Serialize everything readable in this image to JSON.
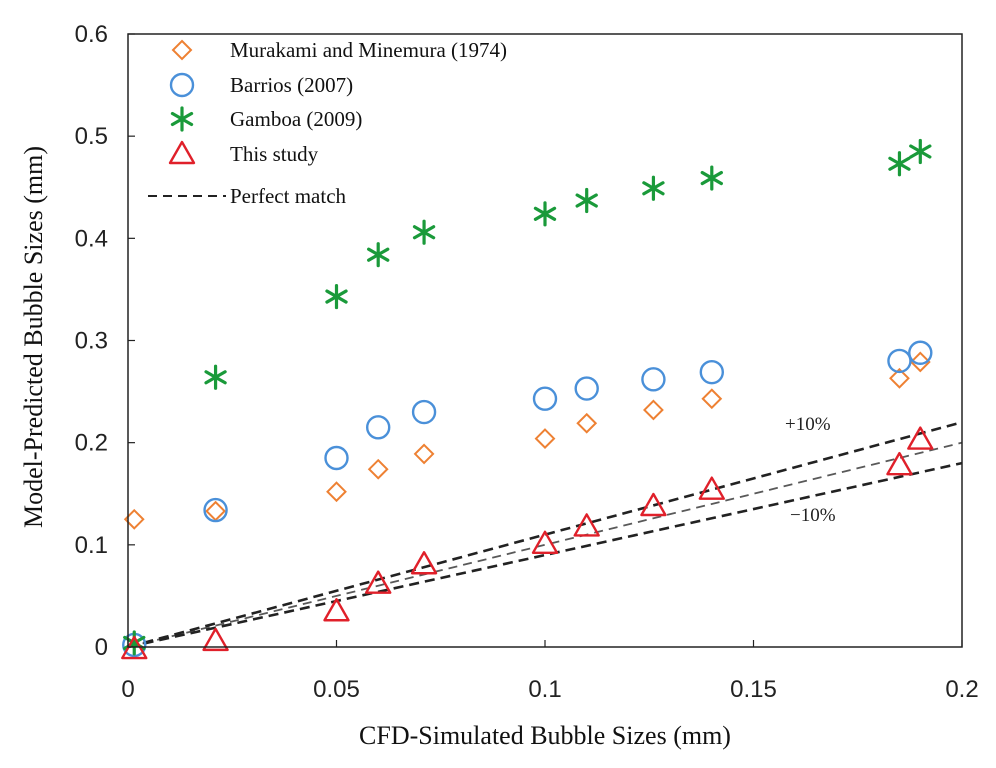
{
  "chart_data": {
    "type": "scatter",
    "xlabel": "CFD-Simulated Bubble Sizes (mm)",
    "ylabel": "Model-Predicted Bubble Sizes (mm)",
    "xlim": [
      0,
      0.2
    ],
    "ylim": [
      0,
      0.6
    ],
    "x_ticks": [
      0,
      0.05,
      0.1,
      0.15,
      0.2
    ],
    "x_tick_labels": [
      "0",
      "0.05",
      "0.1",
      "0.15",
      "0.2"
    ],
    "y_ticks": [
      0,
      0.1,
      0.2,
      0.3,
      0.4,
      0.5,
      0.6
    ],
    "y_tick_labels": [
      "0",
      "0.1",
      "0.2",
      "0.3",
      "0.4",
      "0.5",
      "0.6"
    ],
    "grid": false,
    "legend_position": "top-left",
    "series": [
      {
        "name": "Murakami and Minemura (1974)",
        "marker": "diamond",
        "color": "#ee8133",
        "points": [
          [
            0.0015,
            0.125
          ],
          [
            0.021,
            0.133
          ],
          [
            0.05,
            0.152
          ],
          [
            0.06,
            0.174
          ],
          [
            0.071,
            0.189
          ],
          [
            0.1,
            0.204
          ],
          [
            0.11,
            0.219
          ],
          [
            0.126,
            0.232
          ],
          [
            0.14,
            0.243
          ],
          [
            0.185,
            0.263
          ],
          [
            0.19,
            0.279
          ]
        ]
      },
      {
        "name": "Barrios (2007)",
        "marker": "circle",
        "color": "#4a90d9",
        "points": [
          [
            0.0015,
            0.002
          ],
          [
            0.021,
            0.134
          ],
          [
            0.05,
            0.185
          ],
          [
            0.06,
            0.215
          ],
          [
            0.071,
            0.23
          ],
          [
            0.1,
            0.243
          ],
          [
            0.11,
            0.253
          ],
          [
            0.126,
            0.262
          ],
          [
            0.14,
            0.269
          ],
          [
            0.185,
            0.28
          ],
          [
            0.19,
            0.288
          ]
        ]
      },
      {
        "name": "Gamboa (2009)",
        "marker": "asterisk",
        "color": "#1a9a3a",
        "points": [
          [
            0.0015,
            0.004
          ],
          [
            0.021,
            0.264
          ],
          [
            0.05,
            0.343
          ],
          [
            0.06,
            0.384
          ],
          [
            0.071,
            0.406
          ],
          [
            0.1,
            0.424
          ],
          [
            0.11,
            0.437
          ],
          [
            0.126,
            0.449
          ],
          [
            0.14,
            0.459
          ],
          [
            0.185,
            0.473
          ],
          [
            0.19,
            0.485
          ]
        ]
      },
      {
        "name": "This study",
        "marker": "triangle",
        "color": "#e0202a",
        "points": [
          [
            0.0015,
            -0.002
          ],
          [
            0.021,
            0.006
          ],
          [
            0.05,
            0.035
          ],
          [
            0.06,
            0.062
          ],
          [
            0.071,
            0.081
          ],
          [
            0.1,
            0.101
          ],
          [
            0.11,
            0.118
          ],
          [
            0.126,
            0.138
          ],
          [
            0.14,
            0.154
          ],
          [
            0.185,
            0.178
          ],
          [
            0.19,
            0.203
          ]
        ]
      }
    ],
    "reference_lines": [
      {
        "name": "Perfect match",
        "slope": 1.0,
        "style": "dashed",
        "color": "#222222"
      },
      {
        "label": "+10%",
        "slope": 1.1,
        "style": "dashed",
        "color": "#222222"
      },
      {
        "label": "−10%",
        "slope": 0.9,
        "style": "dashed",
        "color": "#222222"
      }
    ]
  }
}
